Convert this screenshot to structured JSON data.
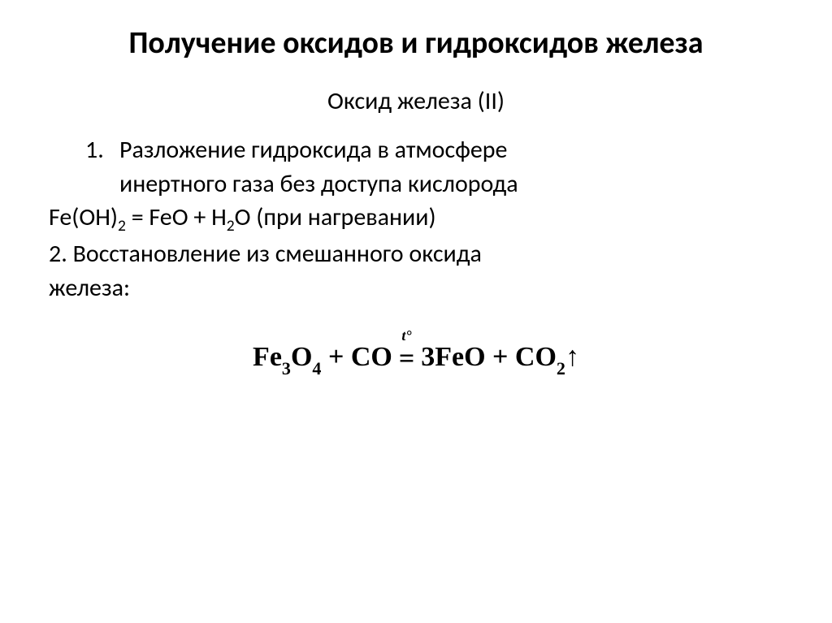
{
  "title": "Получение оксидов и гидроксидов железа",
  "subtitle": "Оксид железа (II)",
  "item1_number": "1.",
  "item1_text_line1": "Разложение гидроксида в атмосфере",
  "item1_text_line2": "инертного газа без доступа кислорода",
  "formula1_prefix": "Fe(OH)",
  "formula1_sub1": "2",
  "formula1_mid": " = FeO + H",
  "formula1_sub2": "2",
  "formula1_suffix": "O (при нагревании)",
  "item2_number": "2. ",
  "item2_text_line1": "Восстановление из смешанного оксида",
  "item2_text_line2": "железа:",
  "eq_fe": "Fe",
  "eq_3": "3",
  "eq_o": "O",
  "eq_4": "4",
  "eq_plus": " + ",
  "eq_co": "CO",
  "eq_eqsym": "=",
  "eq_temp": "t°",
  "eq_3feo": " 3FeO",
  "eq_co2": "CO",
  "eq_2": "2",
  "eq_arrow": "↑",
  "colors": {
    "background": "#ffffff",
    "text": "#000000"
  }
}
